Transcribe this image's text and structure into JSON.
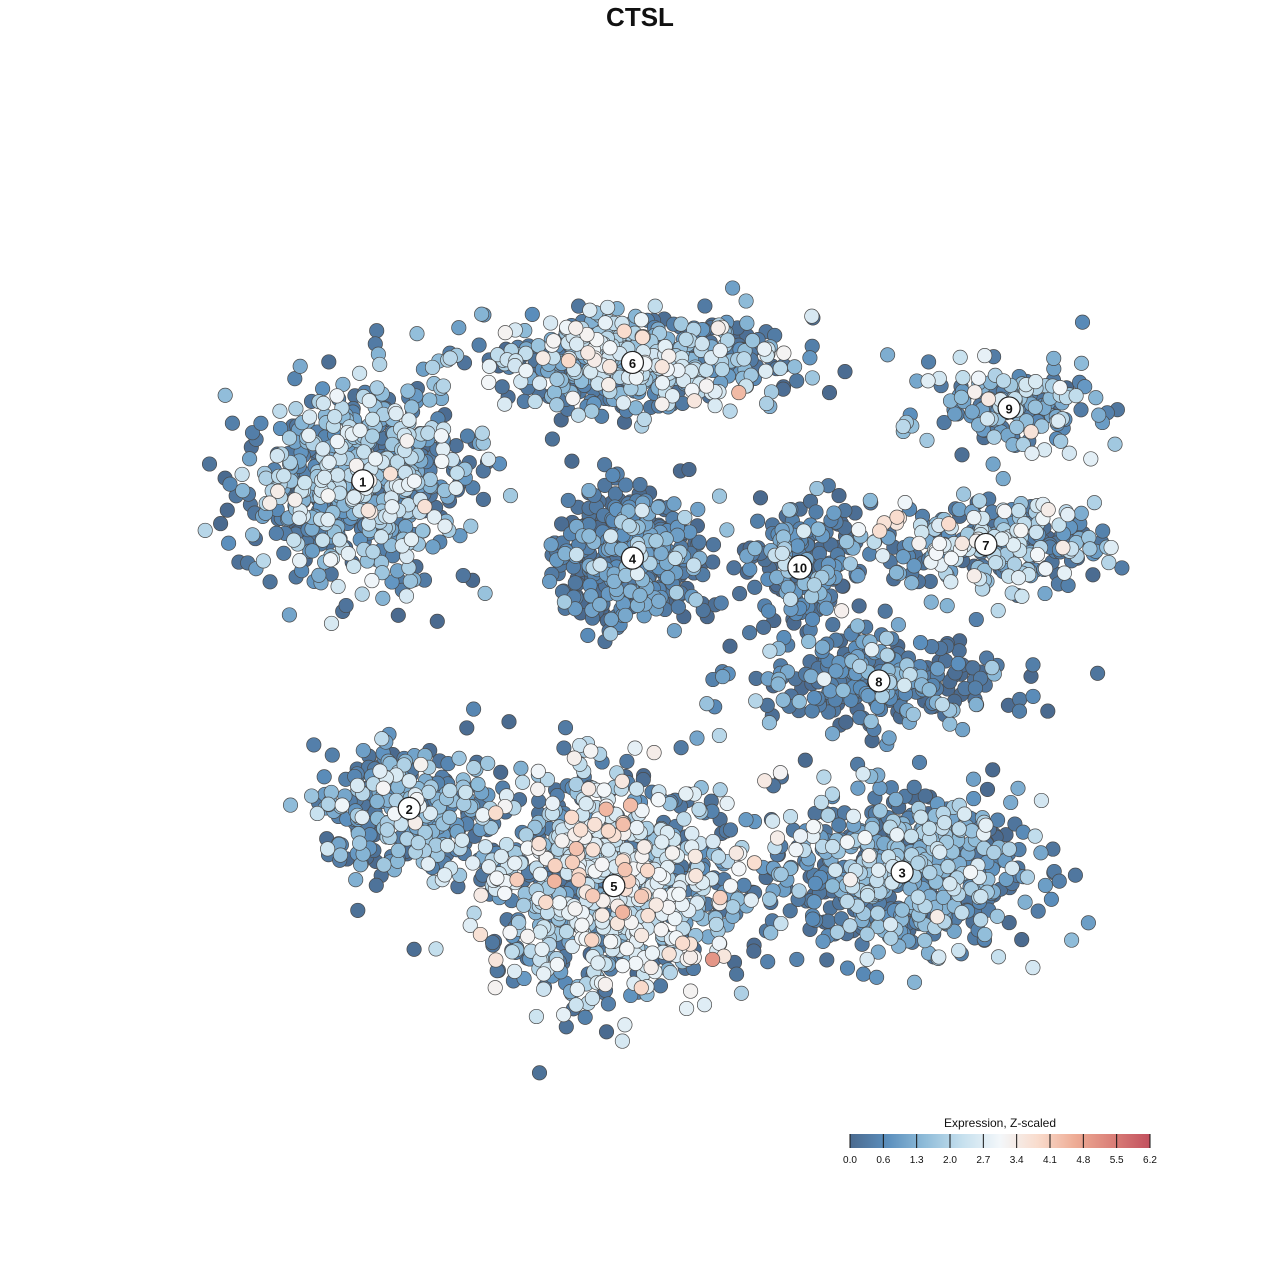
{
  "chart_data": {
    "type": "scatter",
    "title": "CTSL",
    "xlabel": "",
    "ylabel": "",
    "grid": false,
    "legend": {
      "title": "Expression, Z-scaled",
      "placement": "bottom-right",
      "ticks": [
        "0.0",
        "0.6",
        "1.3",
        "2.0",
        "2.7",
        "3.4",
        "4.1",
        "4.8",
        "5.5",
        "6.2"
      ],
      "range": [
        0,
        6.2
      ],
      "colors": [
        "#4a6a8f",
        "#5b8fbd",
        "#8fbcd9",
        "#c6e0ee",
        "#f3f7fa",
        "#f9dccd",
        "#eeac95",
        "#da7f78",
        "#c2505e"
      ]
    },
    "xlim": [
      0,
      1
    ],
    "ylim": [
      0,
      1
    ],
    "clusters": [
      {
        "label": "1",
        "x": 0.175,
        "y": 0.675,
        "sx": 0.105,
        "sy": 0.095,
        "n": 700,
        "mean": 1.35
      },
      {
        "label": "6",
        "x": 0.465,
        "y": 0.805,
        "sx": 0.14,
        "sy": 0.045,
        "n": 620,
        "mean": 1.6
      },
      {
        "label": "4",
        "x": 0.465,
        "y": 0.59,
        "sx": 0.075,
        "sy": 0.065,
        "n": 420,
        "mean": 0.45
      },
      {
        "label": "9",
        "x": 0.87,
        "y": 0.755,
        "sx": 0.075,
        "sy": 0.04,
        "n": 170,
        "mean": 1.5
      },
      {
        "label": "7",
        "x": 0.845,
        "y": 0.605,
        "sx": 0.12,
        "sy": 0.045,
        "n": 280,
        "mean": 2.0
      },
      {
        "label": "10",
        "x": 0.645,
        "y": 0.58,
        "sx": 0.055,
        "sy": 0.065,
        "n": 180,
        "mean": 0.5
      },
      {
        "label": "8",
        "x": 0.73,
        "y": 0.455,
        "sx": 0.12,
        "sy": 0.045,
        "n": 300,
        "mean": 0.55
      },
      {
        "label": "2",
        "x": 0.225,
        "y": 0.315,
        "sx": 0.09,
        "sy": 0.06,
        "n": 330,
        "mean": 1.1
      },
      {
        "label": "3",
        "x": 0.755,
        "y": 0.245,
        "sx": 0.12,
        "sy": 0.075,
        "n": 650,
        "mean": 1.25
      },
      {
        "label": "5",
        "x": 0.445,
        "y": 0.23,
        "sx": 0.13,
        "sy": 0.11,
        "n": 900,
        "mean": 2.2
      }
    ]
  }
}
